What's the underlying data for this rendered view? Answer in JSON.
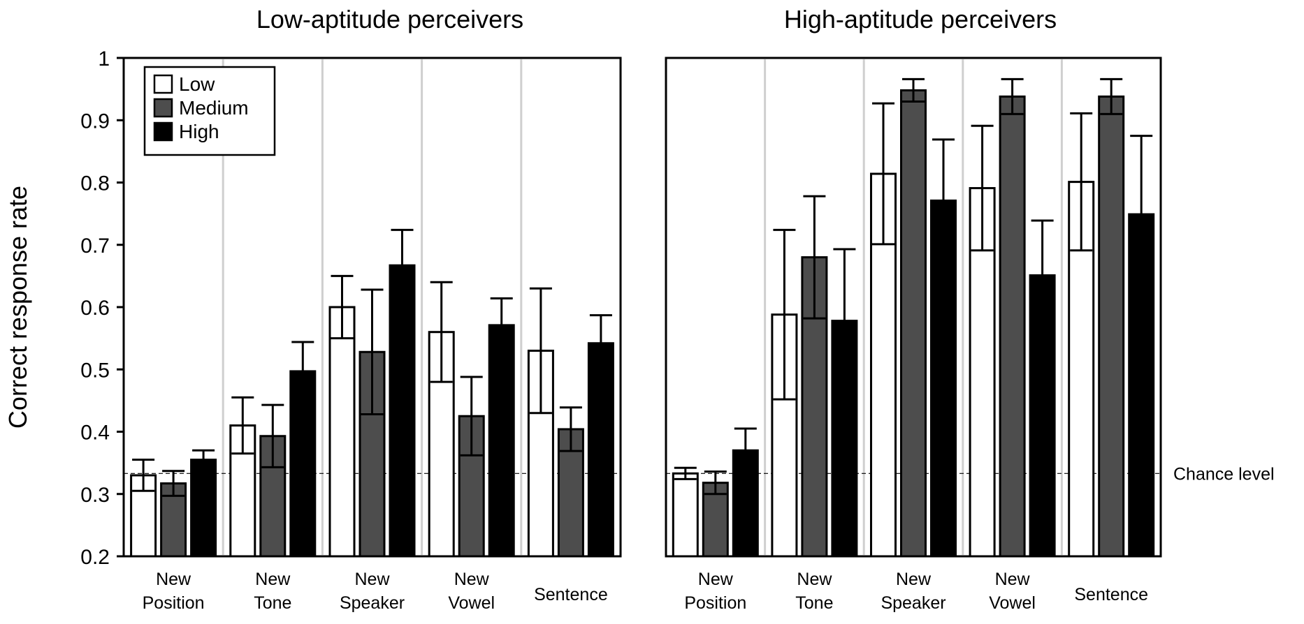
{
  "chart_data": {
    "type": "bar",
    "ylabel": "Correct response rate",
    "ylim": [
      0.2,
      1.0
    ],
    "yticks": [
      0.2,
      0.3,
      0.4,
      0.5,
      0.6,
      0.7,
      0.8,
      0.9,
      1.0
    ],
    "ytick_labels": [
      "0.2",
      "0.3",
      "0.4",
      "0.5",
      "0.6",
      "0.7",
      "0.8",
      "0.9",
      "1"
    ],
    "chance_level": 0.333,
    "chance_label": "Chance level",
    "categories": [
      [
        "New",
        "Position"
      ],
      [
        "New",
        "Tone"
      ],
      [
        "New",
        "Speaker"
      ],
      [
        "New",
        "Vowel"
      ],
      [
        "Sentence"
      ]
    ],
    "legend": [
      {
        "name": "Low",
        "color": "#ffffff"
      },
      {
        "name": "Medium",
        "color": "#4d4d4d"
      },
      {
        "name": "High",
        "color": "#000000"
      }
    ],
    "panels": [
      {
        "title": "Low-aptitude perceivers",
        "series": [
          {
            "name": "Low",
            "values": [
              0.33,
              0.41,
              0.6,
              0.56,
              0.53
            ],
            "err": [
              0.025,
              0.045,
              0.05,
              0.08,
              0.1
            ]
          },
          {
            "name": "Medium",
            "values": [
              0.317,
              0.393,
              0.528,
              0.425,
              0.404
            ],
            "err": [
              0.02,
              0.05,
              0.1,
              0.063,
              0.035
            ]
          },
          {
            "name": "High",
            "values": [
              0.355,
              0.497,
              0.667,
              0.571,
              0.542
            ],
            "err": [
              0.015,
              0.047,
              0.057,
              0.043,
              0.045
            ]
          }
        ]
      },
      {
        "title": "High-aptitude perceivers",
        "series": [
          {
            "name": "Low",
            "values": [
              0.333,
              0.588,
              0.814,
              0.791,
              0.801
            ],
            "err": [
              0.009,
              0.136,
              0.113,
              0.1,
              0.11
            ]
          },
          {
            "name": "Medium",
            "values": [
              0.318,
              0.68,
              0.948,
              0.938,
              0.938
            ],
            "err": [
              0.018,
              0.098,
              0.018,
              0.028,
              0.028
            ]
          },
          {
            "name": "High",
            "values": [
              0.37,
              0.578,
              0.771,
              0.651,
              0.749
            ],
            "err": [
              0.035,
              0.115,
              0.098,
              0.088,
              0.126
            ]
          }
        ]
      }
    ]
  }
}
